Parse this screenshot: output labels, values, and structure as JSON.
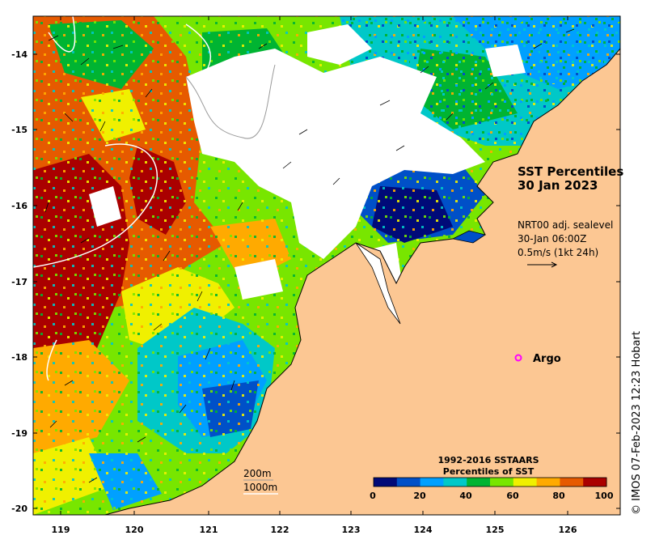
{
  "title": {
    "line1": "SST Percentiles",
    "line2": "30 Jan 2023"
  },
  "current_info": {
    "line1": "NRT00 adj. sealevel",
    "line2": "30-Jan 06:00Z",
    "line3": "0.5m/s (1kt 24h)"
  },
  "argo_label": "Argo",
  "contours": {
    "label_200": "200m",
    "label_1000": "1000m"
  },
  "colorbar": {
    "title_line1": "1992-2016 SSTAARS",
    "title_line2": "Percentiles of SST",
    "ticks": [
      "0",
      "20",
      "40",
      "60",
      "80",
      "100"
    ],
    "colors": [
      "#000a78",
      "#0050c8",
      "#00a0ff",
      "#00c8c8",
      "#00b432",
      "#78e600",
      "#f0f000",
      "#ffaa00",
      "#e65a00",
      "#aa0000"
    ]
  },
  "axes": {
    "x_ticks": [
      "119",
      "120",
      "121",
      "122",
      "123",
      "124",
      "125",
      "126"
    ],
    "y_ticks": [
      "-14",
      "-15",
      "-16",
      "-17",
      "-18",
      "-19",
      "-20"
    ]
  },
  "land_color": "#fcc793",
  "cloud_color": "#ffffff",
  "credit": "© IMOS 07-Feb-2023 12:23 Hobart"
}
